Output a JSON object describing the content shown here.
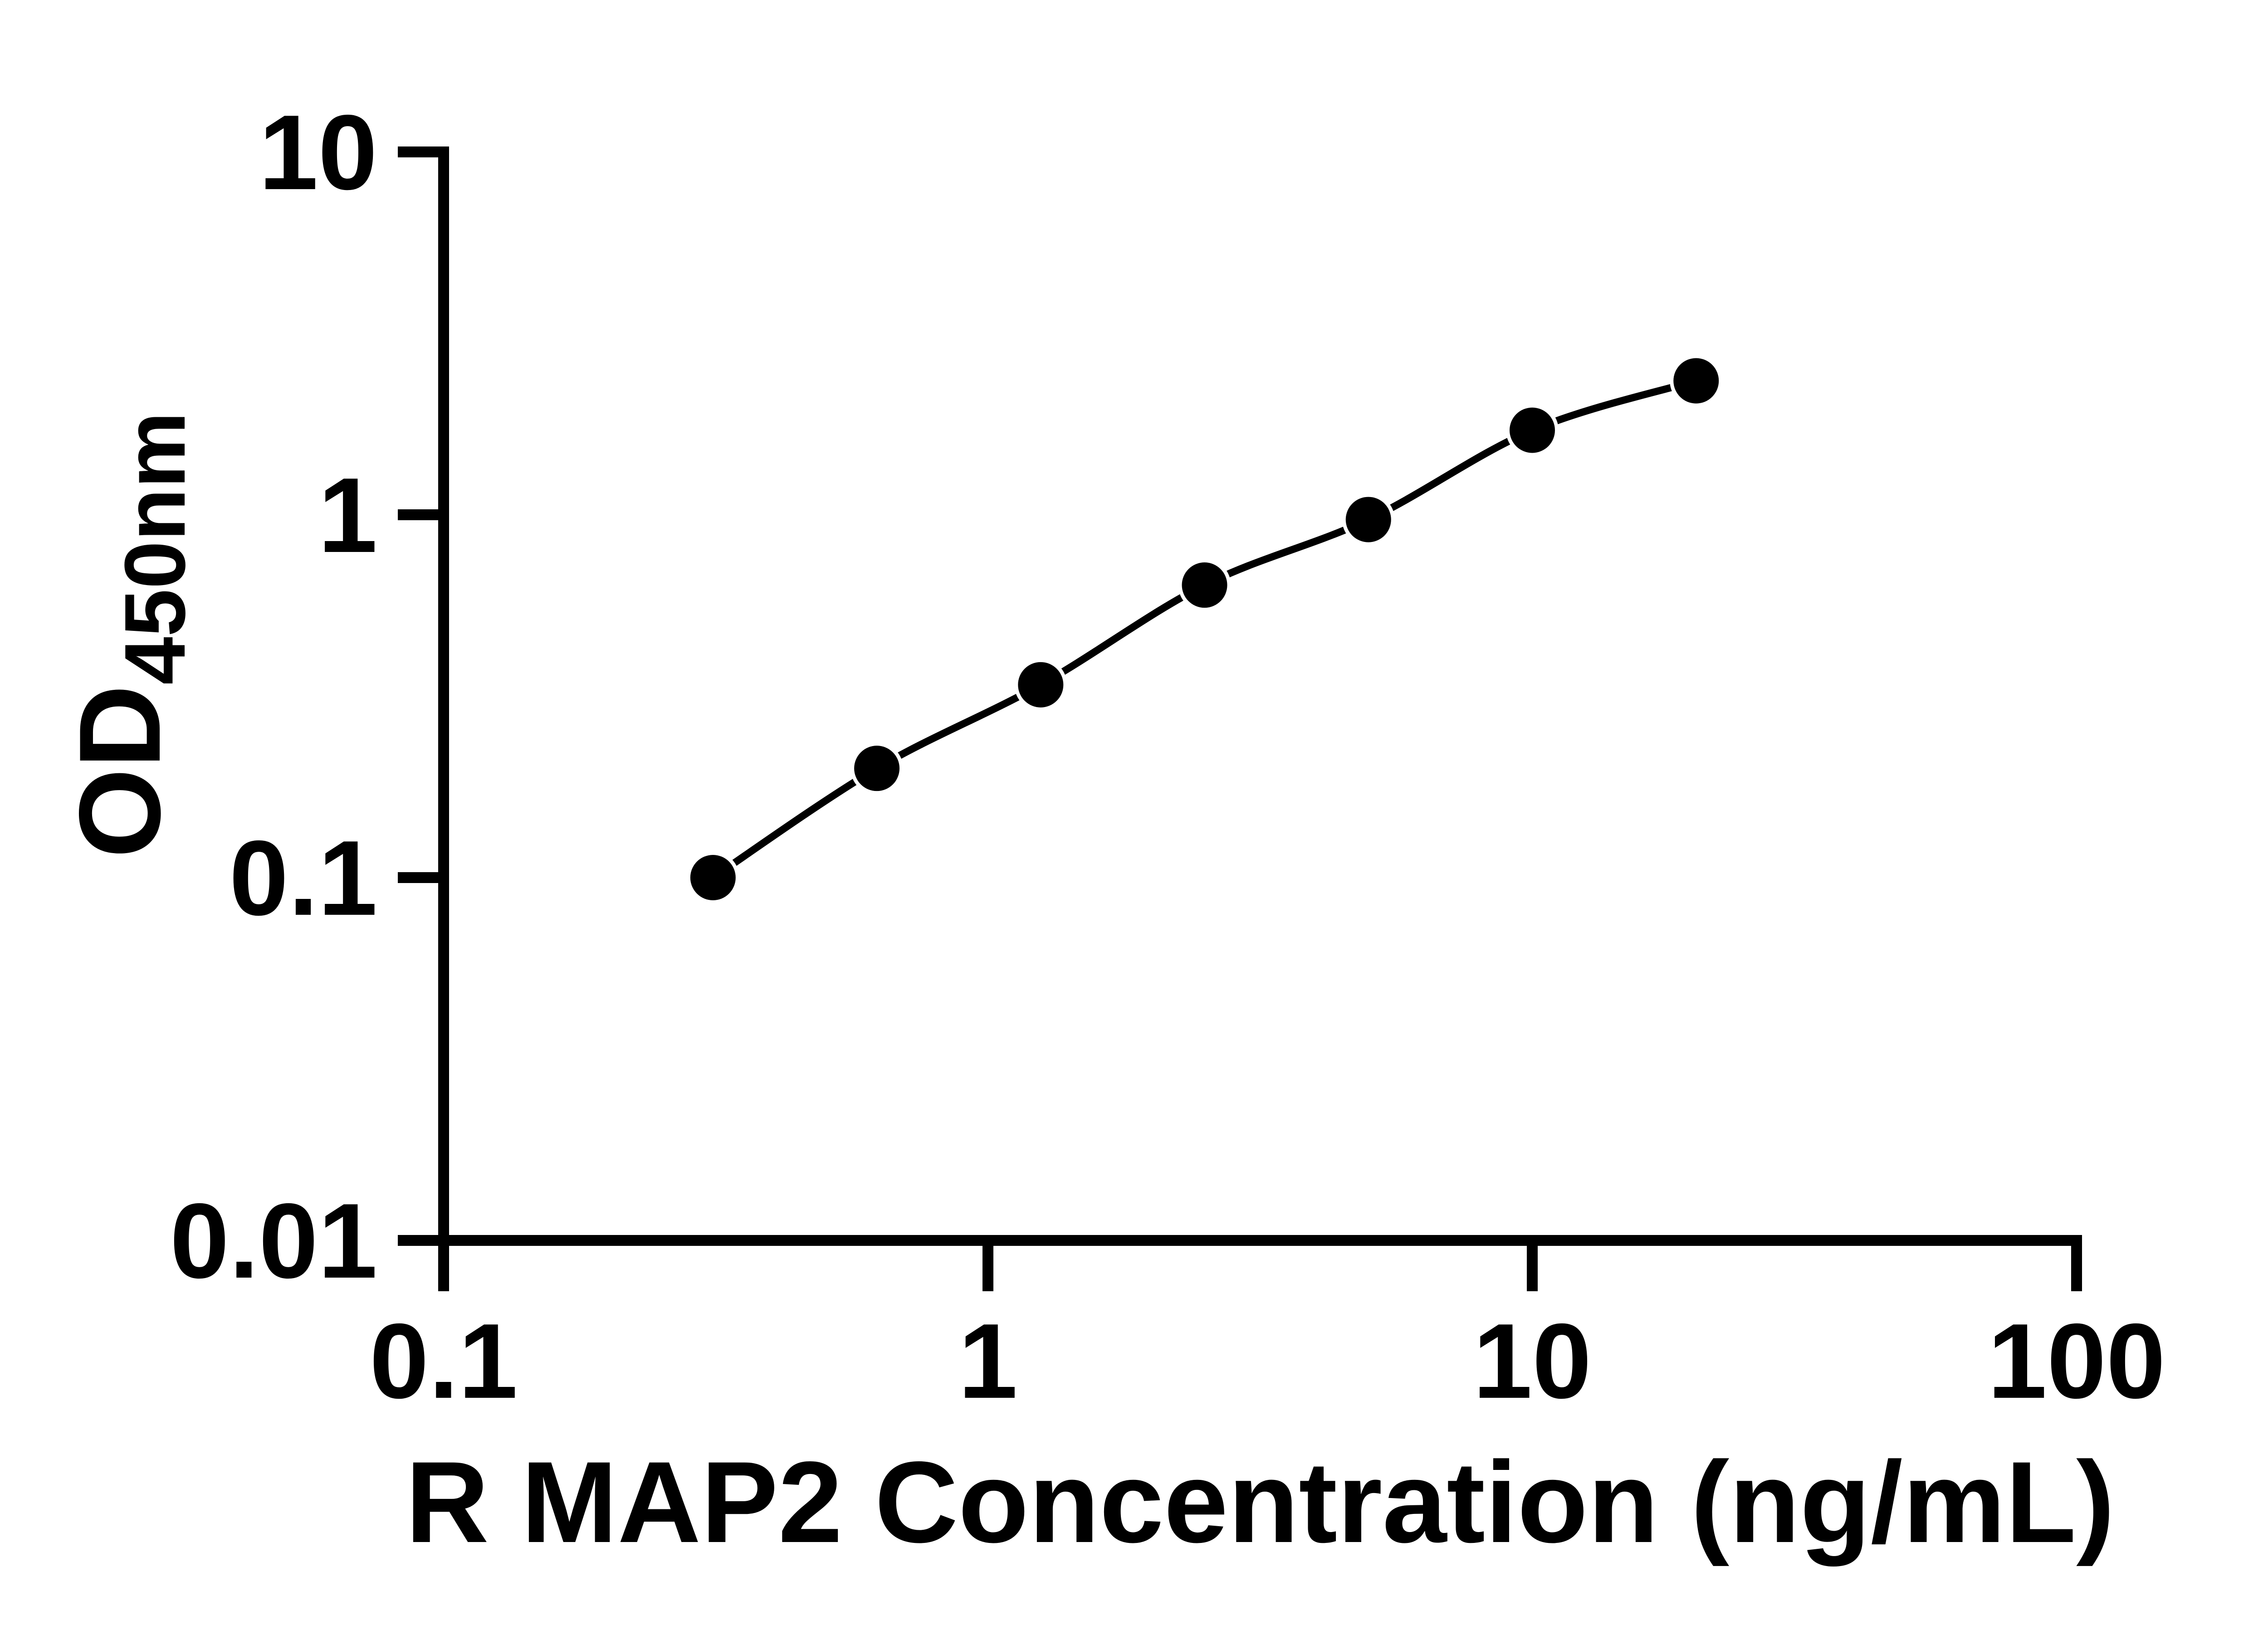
{
  "figure": {
    "background_color": "#ffffff",
    "ink_color": "#000000"
  },
  "chart_data": {
    "type": "line",
    "title": "",
    "xlabel": "R MAP2 Concentration (ng/mL)",
    "ylabel": "OD450nm",
    "ylabel_main": "OD",
    "ylabel_sub": "450nm",
    "x_scale": "log",
    "y_scale": "log",
    "xlim": [
      0.1,
      100
    ],
    "ylim": [
      0.01,
      10
    ],
    "grid": false,
    "legend": null,
    "x_ticks": [
      {
        "value": 0.1,
        "label": "0.1"
      },
      {
        "value": 1,
        "label": "1"
      },
      {
        "value": 10,
        "label": "10"
      },
      {
        "value": 100,
        "label": "100"
      }
    ],
    "y_ticks": [
      {
        "value": 10,
        "label": "10"
      },
      {
        "value": 1,
        "label": "1"
      },
      {
        "value": 0.1,
        "label": "0.1"
      },
      {
        "value": 0.01,
        "label": "0.01"
      }
    ],
    "series": [
      {
        "marker": "filled-circle",
        "color": "#000000",
        "x": [
          0.3125,
          0.625,
          1.25,
          2.5,
          5,
          10,
          20
        ],
        "y": [
          0.1,
          0.2,
          0.34,
          0.64,
          0.97,
          1.71,
          2.34
        ]
      }
    ]
  }
}
